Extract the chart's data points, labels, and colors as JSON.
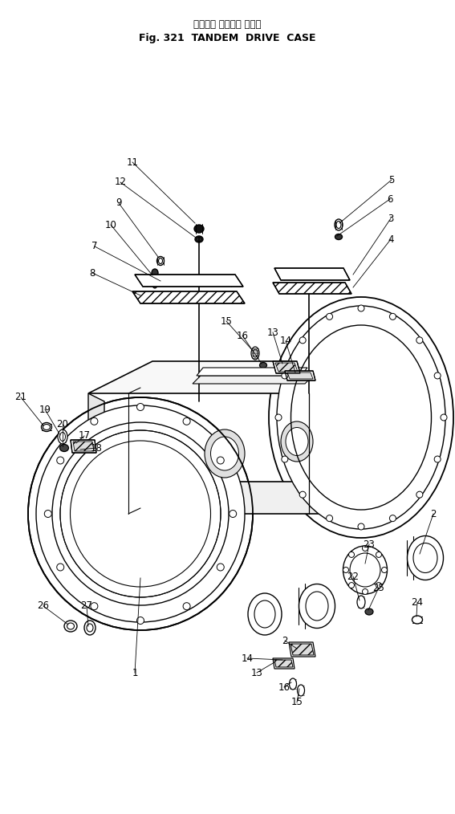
{
  "title_jp": "タンデム ドライブ ケース",
  "title_en": "Fig. 321  TANDEM  DRIVE  CASE",
  "bg_color": "#ffffff",
  "lc": "#000000",
  "fig_w": 5.67,
  "fig_h": 10.14,
  "dpi": 100
}
